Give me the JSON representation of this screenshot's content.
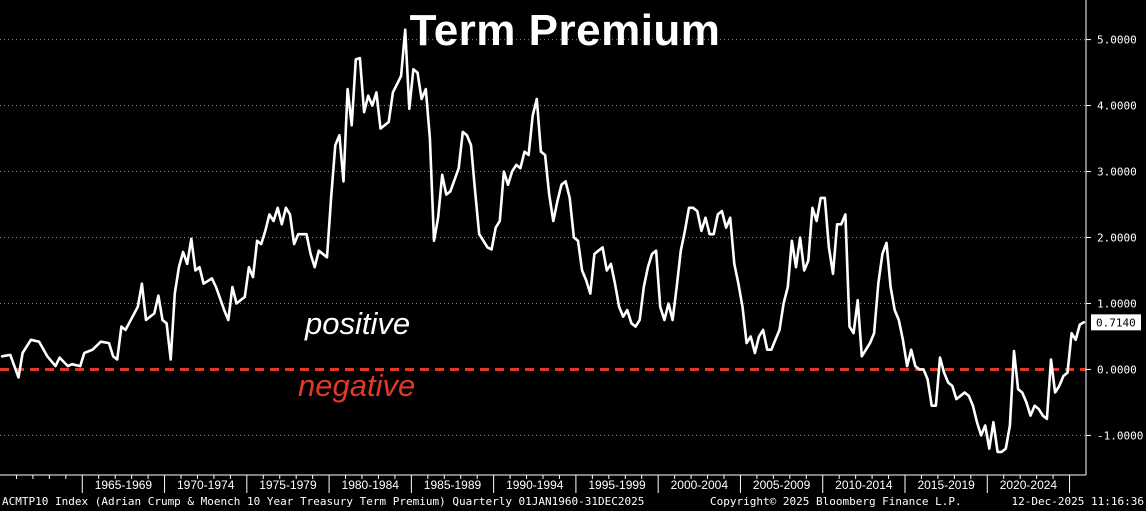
{
  "chart_data": {
    "type": "line",
    "title": "Term Premium",
    "annotations": {
      "positive": "positive",
      "negative": "negative"
    },
    "x_range": [
      "1960Q1",
      "2025Q4"
    ],
    "ylim": [
      -1.6,
      5.6
    ],
    "y_ticks": [
      -1.0,
      0.0,
      1.0,
      2.0,
      3.0,
      4.0,
      5.0
    ],
    "y_tick_labels": [
      "-1.0000",
      "0.0000",
      "1.0000",
      "2.0000",
      "3.0000",
      "4.0000",
      "5.0000"
    ],
    "x_tick_labels": [
      "1965-1969",
      "1970-1974",
      "1975-1979",
      "1980-1984",
      "1985-1989",
      "1990-1994",
      "1995-1999",
      "2000-2004",
      "2005-2009",
      "2010-2014",
      "2015-2019",
      "2020-2024"
    ],
    "reference_line": {
      "y": 0.0,
      "style": "dashed",
      "color": "#e03a24"
    },
    "last_value_label": "0.7140",
    "grid": true,
    "line_color": "#ffffff",
    "series": [
      {
        "points": [
          [
            "1960Q1",
            0.2
          ],
          [
            "1960Q3",
            0.22
          ],
          [
            "1961Q1",
            -0.12
          ],
          [
            "1961Q2",
            0.25
          ],
          [
            "1961Q4",
            0.45
          ],
          [
            "1962Q2",
            0.42
          ],
          [
            "1962Q4",
            0.2
          ],
          [
            "1963Q2",
            0.05
          ],
          [
            "1963Q3",
            0.18
          ],
          [
            "1964Q1",
            0.05
          ],
          [
            "1964Q2",
            0.08
          ],
          [
            "1964Q4",
            0.05
          ],
          [
            "1965Q1",
            0.25
          ],
          [
            "1965Q3",
            0.3
          ],
          [
            "1966Q1",
            0.42
          ],
          [
            "1966Q3",
            0.4
          ],
          [
            "1966Q4",
            0.2
          ],
          [
            "1967Q1",
            0.15
          ],
          [
            "1967Q2",
            0.65
          ],
          [
            "1967Q3",
            0.6
          ],
          [
            "1968Q2",
            0.95
          ],
          [
            "1968Q3",
            1.3
          ],
          [
            "1968Q4",
            0.75
          ],
          [
            "1969Q2",
            0.85
          ],
          [
            "1969Q3",
            1.12
          ],
          [
            "1969Q4",
            0.75
          ],
          [
            "1970Q1",
            0.7
          ],
          [
            "1970Q2",
            0.15
          ],
          [
            "1970Q3",
            1.15
          ],
          [
            "1970Q4",
            1.55
          ],
          [
            "1971Q1",
            1.78
          ],
          [
            "1971Q2",
            1.6
          ],
          [
            "1971Q3",
            1.98
          ],
          [
            "1971Q4",
            1.5
          ],
          [
            "1972Q1",
            1.55
          ],
          [
            "1972Q2",
            1.3
          ],
          [
            "1972Q4",
            1.38
          ],
          [
            "1973Q1",
            1.25
          ],
          [
            "1973Q3",
            0.9
          ],
          [
            "1973Q4",
            0.75
          ],
          [
            "1974Q1",
            1.25
          ],
          [
            "1974Q2",
            1.0
          ],
          [
            "1974Q4",
            1.1
          ],
          [
            "1975Q1",
            1.55
          ],
          [
            "1975Q2",
            1.4
          ],
          [
            "1975Q3",
            1.95
          ],
          [
            "1975Q4",
            1.9
          ],
          [
            "1976Q1",
            2.1
          ],
          [
            "1976Q2",
            2.35
          ],
          [
            "1976Q3",
            2.25
          ],
          [
            "1976Q4",
            2.45
          ],
          [
            "1977Q1",
            2.2
          ],
          [
            "1977Q2",
            2.45
          ],
          [
            "1977Q3",
            2.35
          ],
          [
            "1977Q4",
            1.9
          ],
          [
            "1978Q1",
            2.05
          ],
          [
            "1978Q3",
            2.05
          ],
          [
            "1978Q4",
            1.75
          ],
          [
            "1979Q1",
            1.55
          ],
          [
            "1979Q2",
            1.8
          ],
          [
            "1979Q4",
            1.7
          ],
          [
            "1980Q1",
            2.6
          ],
          [
            "1980Q2",
            3.4
          ],
          [
            "1980Q3",
            3.55
          ],
          [
            "1980Q4",
            2.85
          ],
          [
            "1981Q1",
            4.25
          ],
          [
            "1981Q2",
            3.7
          ],
          [
            "1981Q3",
            4.7
          ],
          [
            "1981Q4",
            4.72
          ],
          [
            "1982Q1",
            3.9
          ],
          [
            "1982Q2",
            4.15
          ],
          [
            "1982Q3",
            4.0
          ],
          [
            "1982Q4",
            4.2
          ],
          [
            "1983Q1",
            3.65
          ],
          [
            "1983Q3",
            3.75
          ],
          [
            "1983Q4",
            4.2
          ],
          [
            "1984Q2",
            4.45
          ],
          [
            "1984Q3",
            5.15
          ],
          [
            "1984Q4",
            3.95
          ],
          [
            "1985Q1",
            4.55
          ],
          [
            "1985Q2",
            4.5
          ],
          [
            "1985Q3",
            4.1
          ],
          [
            "1985Q4",
            4.25
          ],
          [
            "1986Q1",
            3.5
          ],
          [
            "1986Q2",
            1.95
          ],
          [
            "1986Q3",
            2.3
          ],
          [
            "1986Q4",
            2.95
          ],
          [
            "1987Q1",
            2.65
          ],
          [
            "1987Q2",
            2.7
          ],
          [
            "1987Q4",
            3.05
          ],
          [
            "1988Q1",
            3.6
          ],
          [
            "1988Q2",
            3.55
          ],
          [
            "1988Q3",
            3.4
          ],
          [
            "1988Q4",
            2.7
          ],
          [
            "1989Q1",
            2.05
          ],
          [
            "1989Q2",
            1.95
          ],
          [
            "1989Q3",
            1.85
          ],
          [
            "1989Q4",
            1.82
          ],
          [
            "1990Q1",
            2.15
          ],
          [
            "1990Q2",
            2.25
          ],
          [
            "1990Q3",
            3.0
          ],
          [
            "1990Q4",
            2.8
          ],
          [
            "1991Q1",
            3.0
          ],
          [
            "1991Q2",
            3.1
          ],
          [
            "1991Q3",
            3.05
          ],
          [
            "1991Q4",
            3.3
          ],
          [
            "1992Q1",
            3.25
          ],
          [
            "1992Q2",
            3.85
          ],
          [
            "1992Q3",
            4.1
          ],
          [
            "1992Q4",
            3.3
          ],
          [
            "1993Q1",
            3.25
          ],
          [
            "1993Q2",
            2.65
          ],
          [
            "1993Q3",
            2.25
          ],
          [
            "1993Q4",
            2.55
          ],
          [
            "1994Q1",
            2.8
          ],
          [
            "1994Q2",
            2.85
          ],
          [
            "1994Q3",
            2.6
          ],
          [
            "1994Q4",
            2.0
          ],
          [
            "1995Q1",
            1.95
          ],
          [
            "1995Q2",
            1.5
          ],
          [
            "1995Q3",
            1.35
          ],
          [
            "1995Q4",
            1.15
          ],
          [
            "1996Q1",
            1.75
          ],
          [
            "1996Q2",
            1.8
          ],
          [
            "1996Q3",
            1.85
          ],
          [
            "1996Q4",
            1.5
          ],
          [
            "1997Q1",
            1.6
          ],
          [
            "1997Q2",
            1.3
          ],
          [
            "1997Q3",
            0.95
          ],
          [
            "1997Q4",
            0.8
          ],
          [
            "1998Q1",
            0.9
          ],
          [
            "1998Q2",
            0.7
          ],
          [
            "1998Q3",
            0.65
          ],
          [
            "1998Q4",
            0.75
          ],
          [
            "1999Q1",
            1.25
          ],
          [
            "1999Q2",
            1.55
          ],
          [
            "1999Q3",
            1.75
          ],
          [
            "1999Q4",
            1.8
          ],
          [
            "2000Q1",
            0.95
          ],
          [
            "2000Q2",
            0.75
          ],
          [
            "2000Q3",
            1.0
          ],
          [
            "2000Q4",
            0.75
          ],
          [
            "2001Q1",
            1.25
          ],
          [
            "2001Q2",
            1.8
          ],
          [
            "2001Q3",
            2.1
          ],
          [
            "2001Q4",
            2.45
          ],
          [
            "2002Q1",
            2.45
          ],
          [
            "2002Q2",
            2.4
          ],
          [
            "2002Q3",
            2.1
          ],
          [
            "2002Q4",
            2.3
          ],
          [
            "2003Q1",
            2.05
          ],
          [
            "2003Q2",
            2.05
          ],
          [
            "2003Q3",
            2.35
          ],
          [
            "2003Q4",
            2.4
          ],
          [
            "2004Q1",
            2.15
          ],
          [
            "2004Q2",
            2.3
          ],
          [
            "2004Q3",
            1.6
          ],
          [
            "2004Q4",
            1.3
          ],
          [
            "2005Q1",
            0.95
          ],
          [
            "2005Q2",
            0.4
          ],
          [
            "2005Q3",
            0.5
          ],
          [
            "2005Q4",
            0.25
          ],
          [
            "2006Q1",
            0.5
          ],
          [
            "2006Q2",
            0.6
          ],
          [
            "2006Q3",
            0.3
          ],
          [
            "2006Q4",
            0.3
          ],
          [
            "2007Q1",
            0.45
          ],
          [
            "2007Q2",
            0.6
          ],
          [
            "2007Q3",
            1.0
          ],
          [
            "2007Q4",
            1.25
          ],
          [
            "2008Q1",
            1.95
          ],
          [
            "2008Q2",
            1.55
          ],
          [
            "2008Q3",
            2.0
          ],
          [
            "2008Q4",
            1.5
          ],
          [
            "2009Q1",
            1.65
          ],
          [
            "2009Q2",
            2.45
          ],
          [
            "2009Q3",
            2.25
          ],
          [
            "2009Q4",
            2.6
          ],
          [
            "2010Q1",
            2.6
          ],
          [
            "2010Q2",
            1.85
          ],
          [
            "2010Q3",
            1.45
          ],
          [
            "2010Q4",
            2.2
          ],
          [
            "2011Q1",
            2.2
          ],
          [
            "2011Q2",
            2.35
          ],
          [
            "2011Q3",
            0.65
          ],
          [
            "2011Q4",
            0.55
          ],
          [
            "2012Q1",
            1.05
          ],
          [
            "2012Q2",
            0.2
          ],
          [
            "2012Q3",
            0.3
          ],
          [
            "2012Q4",
            0.4
          ],
          [
            "2013Q1",
            0.55
          ],
          [
            "2013Q2",
            1.3
          ],
          [
            "2013Q3",
            1.75
          ],
          [
            "2013Q4",
            1.92
          ],
          [
            "2014Q1",
            1.25
          ],
          [
            "2014Q2",
            0.9
          ],
          [
            "2014Q3",
            0.75
          ],
          [
            "2014Q4",
            0.45
          ],
          [
            "2015Q1",
            0.05
          ],
          [
            "2015Q2",
            0.3
          ],
          [
            "2015Q3",
            0.05
          ],
          [
            "2015Q4",
            0.0
          ],
          [
            "2016Q1",
            0.0
          ],
          [
            "2016Q2",
            -0.15
          ],
          [
            "2016Q3",
            -0.55
          ],
          [
            "2016Q4",
            -0.55
          ],
          [
            "2017Q1",
            0.18
          ],
          [
            "2017Q2",
            -0.05
          ],
          [
            "2017Q3",
            -0.2
          ],
          [
            "2017Q4",
            -0.25
          ],
          [
            "2018Q1",
            -0.45
          ],
          [
            "2018Q2",
            -0.4
          ],
          [
            "2018Q3",
            -0.35
          ],
          [
            "2018Q4",
            -0.4
          ],
          [
            "2019Q1",
            -0.55
          ],
          [
            "2019Q2",
            -0.8
          ],
          [
            "2019Q3",
            -1.0
          ],
          [
            "2019Q4",
            -0.85
          ],
          [
            "2020Q1",
            -1.2
          ],
          [
            "2020Q2",
            -0.8
          ],
          [
            "2020Q3",
            -1.25
          ],
          [
            "2020Q4",
            -1.25
          ],
          [
            "2021Q1",
            -1.2
          ],
          [
            "2021Q2",
            -0.85
          ],
          [
            "2021Q3",
            0.28
          ],
          [
            "2021Q4",
            -0.3
          ],
          [
            "2022Q1",
            -0.35
          ],
          [
            "2022Q2",
            -0.5
          ],
          [
            "2022Q3",
            -0.7
          ],
          [
            "2022Q4",
            -0.55
          ],
          [
            "2023Q1",
            -0.6
          ],
          [
            "2023Q2",
            -0.7
          ],
          [
            "2023Q3",
            -0.75
          ],
          [
            "2023Q4",
            0.15
          ],
          [
            "2024Q1",
            -0.35
          ],
          [
            "2024Q2",
            -0.25
          ],
          [
            "2024Q3",
            -0.1
          ],
          [
            "2024Q4",
            -0.05
          ],
          [
            "2025Q1",
            0.55
          ],
          [
            "2025Q2",
            0.45
          ],
          [
            "2025Q3",
            0.68
          ],
          [
            "2025Q4",
            0.714
          ]
        ]
      }
    ]
  },
  "footer": {
    "left": "ACMTP10 Index (Adrian Crump & Moench 10 Year Treasury Term Premium) Quarterly 01JAN1960-31DEC2025",
    "center": "Copyright© 2025 Bloomberg Finance L.P.",
    "right": "12-Dec-2025 11:16:36"
  }
}
